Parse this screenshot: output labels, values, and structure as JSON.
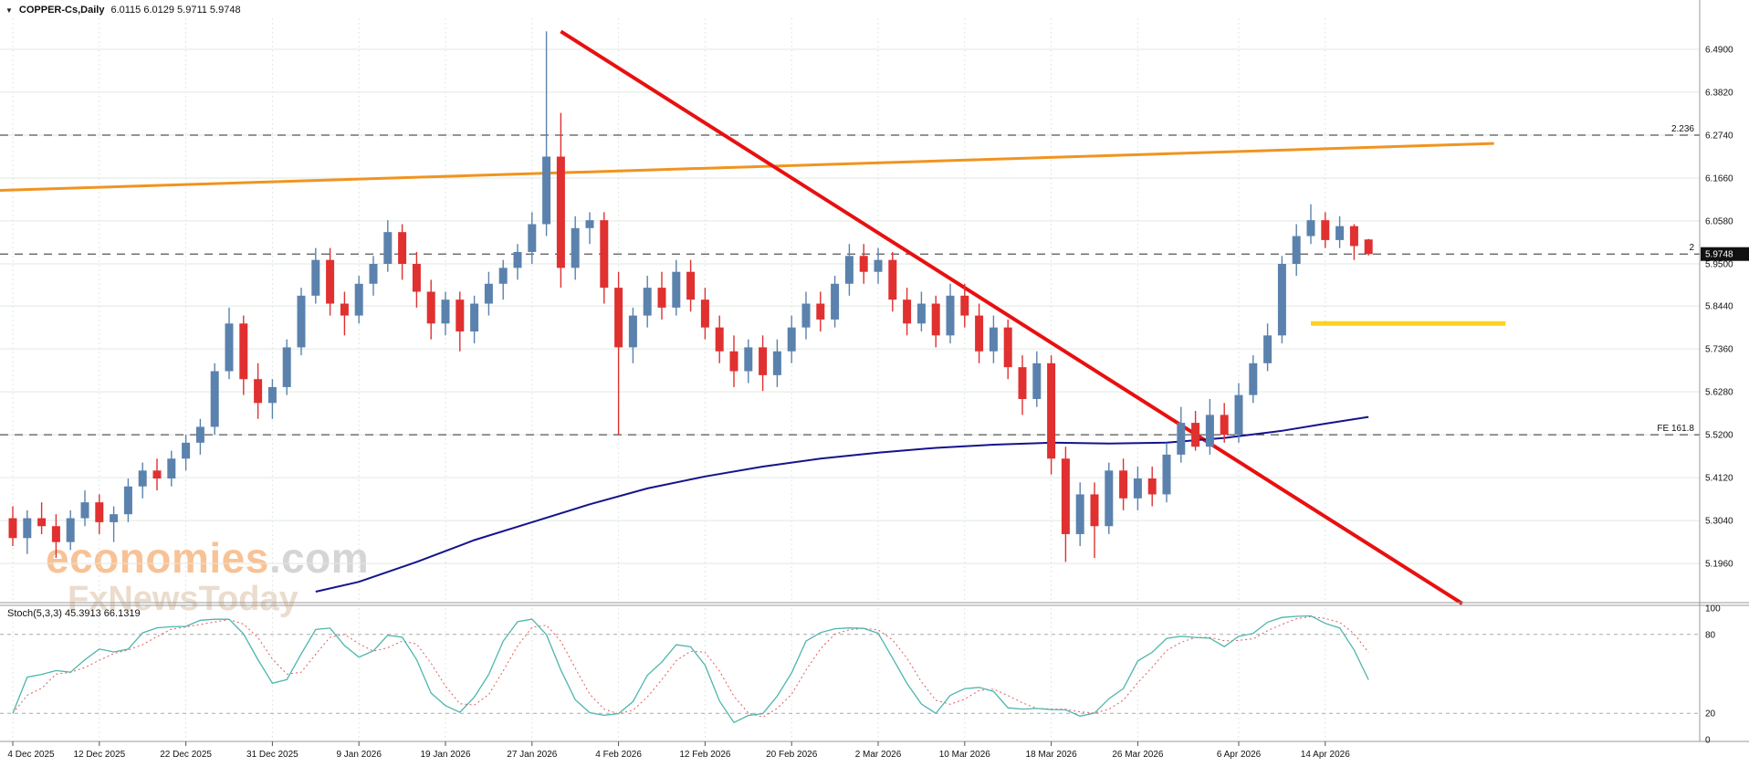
{
  "window": {
    "dropdown_icon": "▼",
    "symbol_timeframe": "COPPER-Cs,Daily",
    "ohlc_display": "6.0115 6.0129 5.9711 5.9748"
  },
  "colors": {
    "bull": "#5b82ad",
    "bear": "#e03030",
    "red_trendline": "#e81010",
    "orange_trendline": "#f0941f",
    "yellow_line": "#ffd21e",
    "ma_line": "#14148c",
    "stoch_main": "#4db6ac",
    "stoch_signal": "#e05c5c",
    "grid": "#dfe9df",
    "level_dash": "#555555",
    "axis_text": "#111111",
    "price_tag_bg": "#111111",
    "separator": "#999999"
  },
  "price_axis": {
    "labels": [
      "6.4900",
      "6.3820",
      "6.2740",
      "6.1660",
      "6.0580",
      "5.9500",
      "5.8440",
      "5.7360",
      "5.6280",
      "5.5200",
      "5.4120",
      "5.3040",
      "5.1960"
    ],
    "current_price": "5.9748"
  },
  "time_axis": {
    "labels": [
      "4 Dec 2025",
      "12 Dec 2025",
      "22 Dec 2025",
      "31 Dec 2025",
      "9 Jan 2026",
      "19 Jan 2026",
      "27 Jan 2026",
      "4 Feb 2026",
      "12 Feb 2026",
      "20 Feb 2026",
      "2 Mar 2026",
      "10 Mar 2026",
      "18 Mar 2026",
      "26 Mar 2026",
      "6 Apr 2026",
      "14 Apr 2026"
    ],
    "tick_indices": [
      0,
      6,
      12,
      18,
      24,
      30,
      36,
      42,
      48,
      54,
      60,
      66,
      72,
      78,
      85,
      91
    ]
  },
  "watermark": {
    "brand": "economies",
    "suffix": ".com",
    "line2": "FxNewsToday"
  },
  "chart_data": {
    "type": "candlestick",
    "title": "COPPER-Cs Daily",
    "price_range": [
      5.097,
      6.568
    ],
    "levels": [
      {
        "label": "2.236",
        "price": 6.274
      },
      {
        "label": "2",
        "price": 5.9748
      },
      {
        "label": "FE 161.8",
        "price": 5.52
      }
    ],
    "candles": [
      [
        5.31,
        5.34,
        5.24,
        5.26
      ],
      [
        5.26,
        5.33,
        5.22,
        5.31
      ],
      [
        5.31,
        5.35,
        5.27,
        5.29
      ],
      [
        5.29,
        5.32,
        5.21,
        5.25
      ],
      [
        5.25,
        5.33,
        5.23,
        5.31
      ],
      [
        5.31,
        5.38,
        5.29,
        5.35
      ],
      [
        5.35,
        5.37,
        5.27,
        5.3
      ],
      [
        5.3,
        5.34,
        5.25,
        5.32
      ],
      [
        5.32,
        5.41,
        5.3,
        5.39
      ],
      [
        5.39,
        5.45,
        5.36,
        5.43
      ],
      [
        5.43,
        5.46,
        5.38,
        5.41
      ],
      [
        5.41,
        5.48,
        5.39,
        5.46
      ],
      [
        5.46,
        5.52,
        5.43,
        5.5
      ],
      [
        5.5,
        5.56,
        5.47,
        5.54
      ],
      [
        5.54,
        5.7,
        5.52,
        5.68
      ],
      [
        5.68,
        5.84,
        5.66,
        5.8
      ],
      [
        5.8,
        5.82,
        5.62,
        5.66
      ],
      [
        5.66,
        5.7,
        5.56,
        5.6
      ],
      [
        5.6,
        5.66,
        5.56,
        5.64
      ],
      [
        5.64,
        5.76,
        5.62,
        5.74
      ],
      [
        5.74,
        5.89,
        5.72,
        5.87
      ],
      [
        5.87,
        5.99,
        5.85,
        5.96
      ],
      [
        5.96,
        5.99,
        5.82,
        5.85
      ],
      [
        5.85,
        5.88,
        5.77,
        5.82
      ],
      [
        5.82,
        5.92,
        5.8,
        5.9
      ],
      [
        5.9,
        5.97,
        5.87,
        5.95
      ],
      [
        5.95,
        6.06,
        5.93,
        6.03
      ],
      [
        6.03,
        6.05,
        5.91,
        5.95
      ],
      [
        5.95,
        5.98,
        5.84,
        5.88
      ],
      [
        5.88,
        5.91,
        5.76,
        5.8
      ],
      [
        5.8,
        5.88,
        5.77,
        5.86
      ],
      [
        5.86,
        5.88,
        5.73,
        5.78
      ],
      [
        5.78,
        5.87,
        5.75,
        5.85
      ],
      [
        5.85,
        5.93,
        5.82,
        5.9
      ],
      [
        5.9,
        5.96,
        5.86,
        5.94
      ],
      [
        5.94,
        6.0,
        5.91,
        5.98
      ],
      [
        5.98,
        6.08,
        5.95,
        6.05
      ],
      [
        6.05,
        6.535,
        6.02,
        6.22
      ],
      [
        6.22,
        6.33,
        5.89,
        5.94
      ],
      [
        5.94,
        6.07,
        5.91,
        6.04
      ],
      [
        6.04,
        6.08,
        6.0,
        6.06
      ],
      [
        6.06,
        6.08,
        5.85,
        5.89
      ],
      [
        5.89,
        5.93,
        5.52,
        5.74
      ],
      [
        5.74,
        5.84,
        5.7,
        5.82
      ],
      [
        5.82,
        5.92,
        5.79,
        5.89
      ],
      [
        5.89,
        5.93,
        5.81,
        5.84
      ],
      [
        5.84,
        5.96,
        5.82,
        5.93
      ],
      [
        5.93,
        5.96,
        5.83,
        5.86
      ],
      [
        5.86,
        5.89,
        5.76,
        5.79
      ],
      [
        5.79,
        5.82,
        5.7,
        5.73
      ],
      [
        5.73,
        5.77,
        5.64,
        5.68
      ],
      [
        5.68,
        5.76,
        5.65,
        5.74
      ],
      [
        5.74,
        5.77,
        5.63,
        5.67
      ],
      [
        5.67,
        5.76,
        5.64,
        5.73
      ],
      [
        5.73,
        5.82,
        5.7,
        5.79
      ],
      [
        5.79,
        5.88,
        5.76,
        5.85
      ],
      [
        5.85,
        5.88,
        5.78,
        5.81
      ],
      [
        5.81,
        5.92,
        5.79,
        5.9
      ],
      [
        5.9,
        6.0,
        5.87,
        5.97
      ],
      [
        5.97,
        6.0,
        5.9,
        5.93
      ],
      [
        5.93,
        5.99,
        5.9,
        5.96
      ],
      [
        5.96,
        5.98,
        5.83,
        5.86
      ],
      [
        5.86,
        5.89,
        5.77,
        5.8
      ],
      [
        5.8,
        5.88,
        5.78,
        5.85
      ],
      [
        5.85,
        5.87,
        5.74,
        5.77
      ],
      [
        5.77,
        5.9,
        5.75,
        5.87
      ],
      [
        5.87,
        5.9,
        5.79,
        5.82
      ],
      [
        5.82,
        5.85,
        5.7,
        5.73
      ],
      [
        5.73,
        5.82,
        5.7,
        5.79
      ],
      [
        5.79,
        5.81,
        5.66,
        5.69
      ],
      [
        5.69,
        5.72,
        5.57,
        5.61
      ],
      [
        5.61,
        5.73,
        5.59,
        5.7
      ],
      [
        5.7,
        5.72,
        5.42,
        5.46
      ],
      [
        5.46,
        5.49,
        5.2,
        5.27
      ],
      [
        5.27,
        5.4,
        5.24,
        5.37
      ],
      [
        5.37,
        5.4,
        5.21,
        5.29
      ],
      [
        5.29,
        5.45,
        5.27,
        5.43
      ],
      [
        5.43,
        5.46,
        5.33,
        5.36
      ],
      [
        5.36,
        5.44,
        5.33,
        5.41
      ],
      [
        5.41,
        5.44,
        5.34,
        5.37
      ],
      [
        5.37,
        5.5,
        5.35,
        5.47
      ],
      [
        5.47,
        5.59,
        5.45,
        5.55
      ],
      [
        5.55,
        5.58,
        5.48,
        5.49
      ],
      [
        5.49,
        5.61,
        5.47,
        5.57
      ],
      [
        5.57,
        5.6,
        5.5,
        5.52
      ],
      [
        5.52,
        5.65,
        5.5,
        5.62
      ],
      [
        5.62,
        5.72,
        5.6,
        5.7
      ],
      [
        5.7,
        5.8,
        5.68,
        5.77
      ],
      [
        5.77,
        5.97,
        5.75,
        5.95
      ],
      [
        5.95,
        6.05,
        5.92,
        6.02
      ],
      [
        6.02,
        6.1,
        6.0,
        6.06
      ],
      [
        6.06,
        6.08,
        5.99,
        6.01
      ],
      [
        6.01,
        6.07,
        5.99,
        6.045
      ],
      [
        6.045,
        6.05,
        5.96,
        5.995
      ],
      [
        6.0115,
        6.0129,
        5.9711,
        5.9748
      ]
    ],
    "ma_points": [
      [
        21,
        5.125
      ],
      [
        24,
        5.15
      ],
      [
        28,
        5.2
      ],
      [
        32,
        5.255
      ],
      [
        36,
        5.3
      ],
      [
        40,
        5.345
      ],
      [
        44,
        5.385
      ],
      [
        48,
        5.415
      ],
      [
        52,
        5.44
      ],
      [
        56,
        5.46
      ],
      [
        60,
        5.475
      ],
      [
        64,
        5.487
      ],
      [
        68,
        5.495
      ],
      [
        72,
        5.5
      ],
      [
        76,
        5.498
      ],
      [
        80,
        5.5
      ],
      [
        84,
        5.512
      ],
      [
        88,
        5.53
      ],
      [
        91,
        5.548
      ],
      [
        94,
        5.565
      ]
    ],
    "trendlines": [
      {
        "name": "orange-uptrend-line",
        "x1_index": -0.9,
        "price1": 6.135,
        "x2_index": 102.7,
        "price2": 6.253,
        "color_key": "orange_trendline",
        "width": 3
      },
      {
        "name": "yellow-horizontal-line",
        "x1_index": 90,
        "price1": 5.8,
        "x2_index": 103.5,
        "price2": 5.8,
        "color_key": "yellow_line",
        "width": 5
      },
      {
        "name": "red-downtrend-line",
        "x1_index": 38,
        "price1": 6.535,
        "x2_index": 100.5,
        "price2": 5.095,
        "color_key": "red_trendline",
        "width": 4
      }
    ],
    "stoch": {
      "label": "Stoch(5,3,3)",
      "values_text": "45.3913 66.1319",
      "k_period": 5,
      "slowing": 3,
      "d_period": 3,
      "levels": [
        80,
        20
      ],
      "range_labels": [
        "100",
        "80",
        "20",
        "0"
      ],
      "range": [
        0,
        100
      ]
    }
  }
}
